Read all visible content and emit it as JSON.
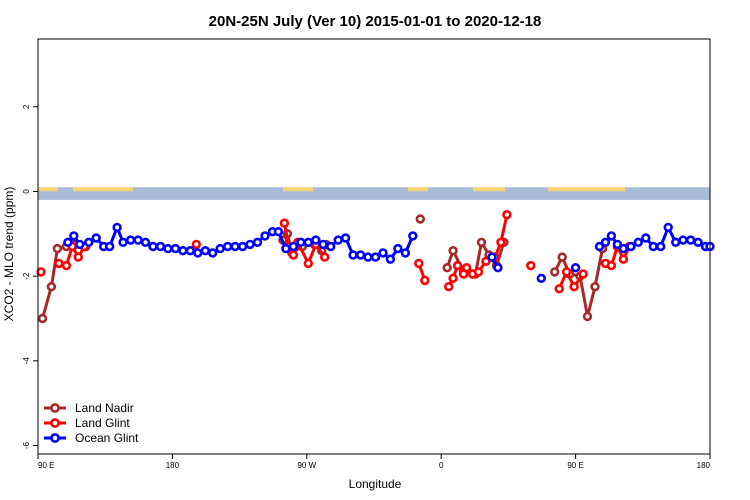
{
  "chart_data": {
    "type": "line",
    "title": "20N-25N July (Ver 10)   2015-01-01 to 2020-12-18",
    "xlabel": "Longitude",
    "ylabel": "XCO2 - MLO trend (ppm)",
    "xlim": [
      90,
      540
    ],
    "ylim": [
      -6.2,
      3.6
    ],
    "x_ticks": [
      {
        "value": 90,
        "label": "90 E"
      },
      {
        "value": 180,
        "label": "180"
      },
      {
        "value": 270,
        "label": "90 W"
      },
      {
        "value": 360,
        "label": "0"
      },
      {
        "value": 450,
        "label": "90 E"
      },
      {
        "value": 540,
        "label": "180"
      }
    ],
    "y_ticks": [
      {
        "value": 2,
        "label": "2"
      },
      {
        "value": 0,
        "label": "0"
      },
      {
        "value": -2,
        "label": "-2"
      },
      {
        "value": -4,
        "label": "-4"
      },
      {
        "value": -6,
        "label": "-6"
      }
    ],
    "land_strip": {
      "y_top": 0.1,
      "y_bottom": -0.2,
      "ocean_color": "#a8bcd8",
      "land_color": "#f5d577"
    },
    "legend_position": "bottom-left",
    "series": [
      {
        "name": "Land Nadir",
        "color": "#a52a2a",
        "segments": [
          [
            [
              93,
              -3.0
            ],
            [
              99,
              -2.25
            ],
            [
              103,
              -1.35
            ],
            [
              109,
              -1.3
            ],
            [
              115,
              -1.25
            ],
            [
              122,
              -1.3
            ]
          ],
          [
            [
              254,
              -1.15
            ],
            [
              257,
              -1.0
            ],
            [
              260,
              -1.45
            ],
            [
              267,
              -1.3
            ],
            [
              275,
              -1.25
            ],
            [
              280,
              -1.4
            ],
            [
              283,
              -1.25
            ]
          ],
          [
            [
              346,
              -0.65
            ]
          ],
          [
            [
              364,
              -1.8
            ],
            [
              368,
              -1.4
            ],
            [
              375,
              -1.9
            ],
            [
              383,
              -1.95
            ],
            [
              387,
              -1.2
            ],
            [
              392,
              -1.5
            ],
            [
              397,
              -1.75
            ],
            [
              402,
              -1.2
            ]
          ],
          [
            [
              436,
              -1.9
            ],
            [
              441,
              -1.55
            ],
            [
              446,
              -1.95
            ],
            [
              453,
              -2.0
            ],
            [
              458,
              -2.95
            ],
            [
              463,
              -2.25
            ],
            [
              468,
              -1.35
            ]
          ]
        ]
      },
      {
        "name": "Land Glint",
        "color": "#ff0000",
        "segments": [
          [
            [
              92,
              -1.9
            ]
          ],
          [
            [
              104,
              -1.7
            ],
            [
              109,
              -1.75
            ],
            [
              113,
              -1.3
            ],
            [
              117,
              -1.55
            ],
            [
              121,
              -1.3
            ]
          ],
          [
            [
              196,
              -1.25
            ]
          ],
          [
            [
              255,
              -0.75
            ],
            [
              258,
              -1.3
            ],
            [
              261,
              -1.5
            ],
            [
              264,
              -1.2
            ],
            [
              271,
              -1.7
            ],
            [
              276,
              -1.25
            ],
            [
              282,
              -1.55
            ]
          ],
          [
            [
              345,
              -1.7
            ],
            [
              349,
              -2.1
            ]
          ],
          [
            [
              365,
              -2.25
            ],
            [
              368,
              -2.05
            ],
            [
              371,
              -1.75
            ],
            [
              375,
              -1.95
            ],
            [
              377,
              -1.8
            ],
            [
              381,
              -1.95
            ],
            [
              385,
              -1.9
            ],
            [
              390,
              -1.65
            ],
            [
              396,
              -1.55
            ],
            [
              400,
              -1.2
            ],
            [
              404,
              -0.55
            ]
          ],
          [
            [
              420,
              -1.75
            ]
          ],
          [
            [
              439,
              -2.3
            ],
            [
              444,
              -1.9
            ],
            [
              449,
              -2.25
            ],
            [
              455,
              -1.95
            ]
          ],
          [
            [
              470,
              -1.7
            ],
            [
              474,
              -1.75
            ],
            [
              478,
              -1.3
            ],
            [
              482,
              -1.6
            ],
            [
              486,
              -1.3
            ]
          ]
        ]
      },
      {
        "name": "Ocean Glint",
        "color": "#0000ff",
        "segments": [
          [
            [
              110,
              -1.2
            ],
            [
              114,
              -1.05
            ],
            [
              118,
              -1.25
            ],
            [
              124,
              -1.2
            ],
            [
              129,
              -1.1
            ],
            [
              134,
              -1.3
            ],
            [
              138,
              -1.3
            ],
            [
              143,
              -0.85
            ],
            [
              147,
              -1.2
            ],
            [
              152,
              -1.15
            ],
            [
              157,
              -1.15
            ],
            [
              162,
              -1.2
            ],
            [
              167,
              -1.3
            ],
            [
              172,
              -1.3
            ],
            [
              177,
              -1.35
            ],
            [
              182,
              -1.35
            ],
            [
              187,
              -1.4
            ],
            [
              192,
              -1.4
            ],
            [
              197,
              -1.45
            ],
            [
              202,
              -1.4
            ],
            [
              207,
              -1.45
            ],
            [
              212,
              -1.35
            ],
            [
              217,
              -1.3
            ],
            [
              222,
              -1.3
            ],
            [
              227,
              -1.3
            ],
            [
              232,
              -1.25
            ],
            [
              237,
              -1.2
            ],
            [
              242,
              -1.05
            ],
            [
              247,
              -0.95
            ],
            [
              251,
              -0.95
            ],
            [
              256,
              -1.35
            ],
            [
              261,
              -1.3
            ],
            [
              266,
              -1.2
            ],
            [
              271,
              -1.2
            ],
            [
              276,
              -1.15
            ],
            [
              281,
              -1.25
            ],
            [
              286,
              -1.3
            ],
            [
              291,
              -1.15
            ],
            [
              296,
              -1.1
            ],
            [
              301,
              -1.5
            ],
            [
              306,
              -1.5
            ],
            [
              311,
              -1.55
            ],
            [
              316,
              -1.55
            ],
            [
              321,
              -1.45
            ],
            [
              326,
              -1.6
            ],
            [
              331,
              -1.35
            ],
            [
              336,
              -1.45
            ],
            [
              341,
              -1.05
            ]
          ],
          [
            [
              394,
              -1.55
            ],
            [
              398,
              -1.8
            ]
          ],
          [
            [
              427,
              -2.05
            ]
          ],
          [
            [
              450,
              -1.8
            ]
          ],
          [
            [
              466,
              -1.3
            ],
            [
              470,
              -1.2
            ],
            [
              474,
              -1.05
            ],
            [
              478,
              -1.25
            ],
            [
              482,
              -1.35
            ],
            [
              487,
              -1.3
            ],
            [
              492,
              -1.2
            ],
            [
              497,
              -1.1
            ],
            [
              502,
              -1.3
            ],
            [
              507,
              -1.3
            ],
            [
              512,
              -0.85
            ],
            [
              517,
              -1.2
            ],
            [
              522,
              -1.15
            ],
            [
              527,
              -1.15
            ],
            [
              532,
              -1.2
            ],
            [
              537,
              -1.3
            ],
            [
              540,
              -1.3
            ]
          ]
        ]
      }
    ]
  }
}
